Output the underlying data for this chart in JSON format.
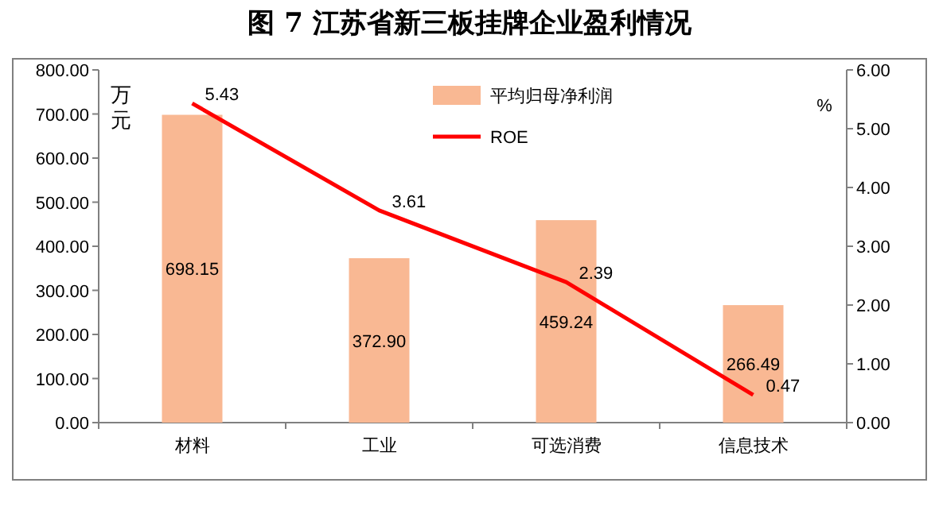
{
  "chart_data": {
    "type": "bar",
    "title": "图 7  江苏省新三板挂牌企业盈利情况",
    "ylabel": "万元",
    "y2label": "%",
    "categories": [
      "材料",
      "工业",
      "可选消费",
      "信息技术"
    ],
    "series": [
      {
        "name": "平均归母净利润",
        "color": "#f9b893",
        "values": [
          698.15,
          372.9,
          459.24,
          266.49
        ],
        "value_labels": [
          "698.15",
          "372.90",
          "459.24",
          "266.49"
        ]
      },
      {
        "name": "ROE",
        "type": "line",
        "axis": "y2",
        "color": "#ff0000",
        "values": [
          5.43,
          3.61,
          2.39,
          0.47
        ],
        "value_labels": [
          "5.43",
          "3.61",
          "2.39",
          "0.47"
        ]
      }
    ],
    "ylim": [
      0,
      800
    ],
    "yticks": [
      {
        "value": 0,
        "label": "0.00"
      },
      {
        "value": 100,
        "label": "100.00"
      },
      {
        "value": 200,
        "label": "200.00"
      },
      {
        "value": 300,
        "label": "300.00"
      },
      {
        "value": 400,
        "label": "400.00"
      },
      {
        "value": 500,
        "label": "500.00"
      },
      {
        "value": 600,
        "label": "600.00"
      },
      {
        "value": 700,
        "label": "700.00"
      },
      {
        "value": 800,
        "label": "800.00"
      }
    ],
    "y2lim": [
      0,
      6
    ],
    "y2ticks": [
      {
        "value": 0,
        "label": "0.00"
      },
      {
        "value": 1,
        "label": "1.00"
      },
      {
        "value": 2,
        "label": "2.00"
      },
      {
        "value": 3,
        "label": "3.00"
      },
      {
        "value": 4,
        "label": "4.00"
      },
      {
        "value": 5,
        "label": "5.00"
      },
      {
        "value": 6,
        "label": "6.00"
      }
    ],
    "legend": "top",
    "grid": false,
    "marker": "none",
    "line_style": "solid"
  }
}
